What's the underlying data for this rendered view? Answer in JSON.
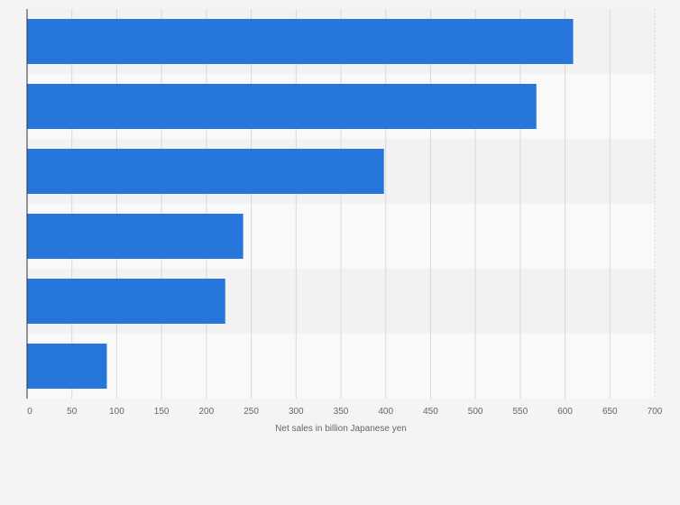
{
  "chart_data": {
    "type": "bar",
    "orientation": "horizontal",
    "categories": [
      "",
      "",
      "",
      "",
      "",
      ""
    ],
    "values": [
      609,
      568,
      398,
      241,
      221,
      89
    ],
    "xlabel": "Net sales in billion Japanese yen",
    "ylabel": "",
    "xlim": [
      0,
      700
    ],
    "xticks": [
      0,
      50,
      100,
      150,
      200,
      250,
      300,
      350,
      400,
      450,
      500,
      550,
      600,
      650,
      700
    ],
    "grid": true,
    "bar_color": "#2776db",
    "band_colors": [
      "#f2f2f2",
      "#f9f9f9"
    ]
  }
}
